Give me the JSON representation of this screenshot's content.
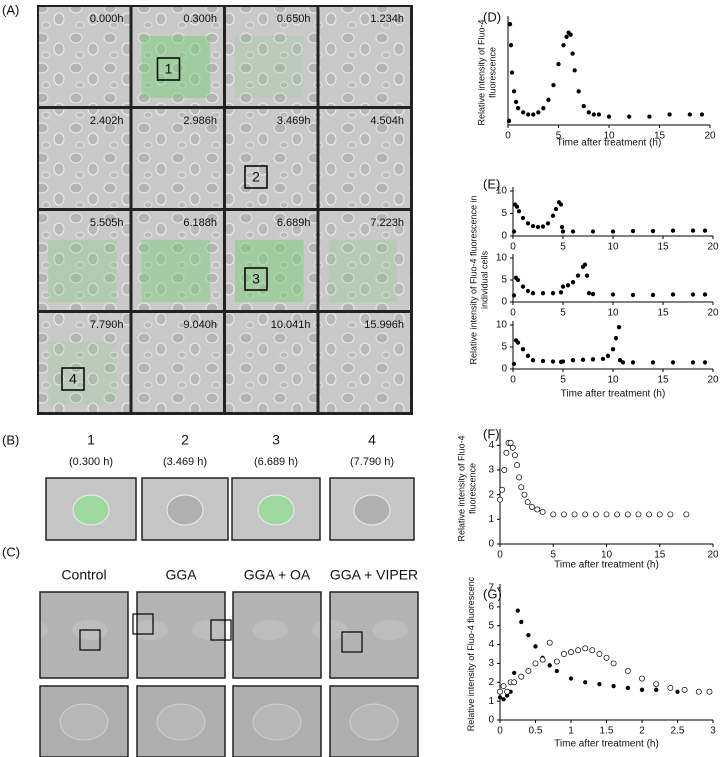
{
  "panels": {
    "A": {
      "label": "(A)",
      "tiles": [
        {
          "time": "0.000h"
        },
        {
          "time": "0.300h",
          "marker": "1"
        },
        {
          "time": "0.650h"
        },
        {
          "time": "1.234h"
        },
        {
          "time": "2.402h"
        },
        {
          "time": "2.986h"
        },
        {
          "time": "3.469h",
          "marker": "2"
        },
        {
          "time": "4.504h"
        },
        {
          "time": "5.505h"
        },
        {
          "time": "6.188h"
        },
        {
          "time": "6.689h",
          "marker": "3"
        },
        {
          "time": "7.223h"
        },
        {
          "time": "7.790h",
          "marker": "4"
        },
        {
          "time": "9.040h"
        },
        {
          "time": "10.041h"
        },
        {
          "time": "15.996h"
        }
      ]
    },
    "B": {
      "label": "(B)",
      "items": [
        {
          "number": "1",
          "time": "(0.300 h)"
        },
        {
          "number": "2",
          "time": "(3.469 h)"
        },
        {
          "number": "3",
          "time": "(6.689 h)"
        },
        {
          "number": "4",
          "time": "(7.790 h)"
        }
      ]
    },
    "C": {
      "label": "(C)",
      "headers": [
        "Control",
        "GGA",
        "GGA + OA",
        "GGA + VIPER"
      ]
    }
  },
  "chart_data": [
    {
      "type": "scatter",
      "label": "(D)",
      "y_label": [
        "Relative intensity of Fluo-4",
        "fluorescence"
      ],
      "x_label": "Time after treatment (h)",
      "xlim": [
        0,
        20
      ],
      "xticks": [
        0,
        5,
        10,
        15,
        20
      ],
      "ylim": [
        1,
        6
      ],
      "series": [
        {
          "color": "#000000",
          "marker": "filled",
          "x": [
            0.1,
            0.2,
            0.3,
            0.4,
            0.6,
            0.8,
            1,
            1.5,
            2,
            2.5,
            3,
            3.5,
            4,
            4.5,
            5,
            5.5,
            5.8,
            6,
            6.2,
            6.4,
            6.6,
            7,
            7.5,
            8,
            8.5,
            9,
            10,
            12,
            14,
            16,
            18,
            19.2
          ],
          "values": [
            1.2,
            5.8,
            4.8,
            3.5,
            2.6,
            2.1,
            1.8,
            1.6,
            1.5,
            1.5,
            1.6,
            1.8,
            2.2,
            2.9,
            3.9,
            4.8,
            5.2,
            5.4,
            5.3,
            4.4,
            3.6,
            2.6,
            1.9,
            1.6,
            1.5,
            1.5,
            1.4,
            1.4,
            1.4,
            1.5,
            1.5,
            1.5
          ]
        }
      ]
    },
    {
      "type": "scatter",
      "label": "(E)",
      "xlim": [
        0,
        20
      ],
      "xticks": [
        0,
        5,
        10,
        15,
        20
      ],
      "ylim": [
        0,
        10
      ],
      "yticks": [
        0,
        5,
        10
      ],
      "series": [
        {
          "color": "#000000",
          "marker": "filled",
          "x": [
            0.1,
            0.2,
            0.4,
            0.6,
            1,
            1.5,
            2,
            2.5,
            3,
            3.5,
            4,
            4.3,
            4.6,
            4.8,
            4.9,
            5,
            6,
            8,
            10,
            12,
            14,
            16,
            18,
            19.2
          ],
          "values": [
            1,
            7,
            6.5,
            5.5,
            4,
            2.8,
            2.2,
            2,
            2.1,
            2.8,
            4.5,
            6,
            7.5,
            7,
            2,
            1,
            1,
            1,
            1,
            1.1,
            1.1,
            1.2,
            1.2,
            1.2
          ]
        }
      ]
    },
    {
      "type": "scatter",
      "y_label": [
        "Relative intensity of Fluo-4 fluorescence in",
        "individual cells"
      ],
      "xlim": [
        0,
        20
      ],
      "xticks": [
        0,
        5,
        10,
        15,
        20
      ],
      "ylim": [
        0,
        10
      ],
      "yticks": [
        0,
        5,
        10
      ],
      "series": [
        {
          "color": "#000000",
          "marker": "filled",
          "x": [
            0.1,
            0.3,
            0.5,
            1,
            1.5,
            2,
            3,
            4,
            4.8,
            5,
            5.5,
            6,
            6.5,
            7,
            7.2,
            7.4,
            7.6,
            8,
            10,
            12,
            14,
            16,
            18,
            19.2
          ],
          "values": [
            1.5,
            5.5,
            5,
            3.5,
            2.5,
            2,
            2,
            2,
            2.2,
            3.5,
            3.8,
            4.5,
            6,
            8,
            8.5,
            6,
            2,
            1.8,
            1.7,
            1.6,
            1.6,
            1.7,
            1.7,
            1.7
          ]
        }
      ]
    },
    {
      "type": "scatter",
      "x_label": "Time after treatment (h)",
      "xlim": [
        0,
        20
      ],
      "xticks": [
        0,
        5,
        10,
        15,
        20
      ],
      "ylim": [
        0,
        10
      ],
      "yticks": [
        0,
        5,
        10
      ],
      "series": [
        {
          "color": "#000000",
          "marker": "filled",
          "x": [
            0.1,
            0.3,
            0.5,
            1,
            1.5,
            2,
            3,
            4,
            4.8,
            5,
            6,
            7,
            8,
            9,
            9.5,
            10,
            10.3,
            10.6,
            10.7,
            11,
            12,
            14,
            16,
            18,
            19.2
          ],
          "values": [
            1.2,
            6.5,
            6,
            4.5,
            3,
            2,
            1.8,
            1.7,
            1.6,
            1.7,
            2,
            2.1,
            2.2,
            2.3,
            3,
            4.5,
            7,
            9.5,
            2,
            1.5,
            1.5,
            1.5,
            1.5,
            1.5,
            1.5
          ]
        }
      ]
    },
    {
      "type": "scatter",
      "label": "(F)",
      "y_label": [
        "Relative intensity of Fluo-4",
        "fluorescence"
      ],
      "x_label": "Time after treatment (h)",
      "xlim": [
        0,
        20
      ],
      "xticks": [
        0,
        5,
        10,
        15,
        20
      ],
      "ylim": [
        0,
        4.5
      ],
      "yticks": [
        0,
        1,
        2,
        3,
        4
      ],
      "series": [
        {
          "color": "#000000",
          "marker": "open",
          "x": [
            0,
            0.2,
            0.4,
            0.6,
            0.8,
            1,
            1.2,
            1.4,
            1.6,
            1.8,
            2,
            2.3,
            2.6,
            3,
            3.5,
            4,
            5,
            6,
            7,
            8,
            9,
            10,
            11,
            12,
            13,
            14,
            15,
            16,
            17.5
          ],
          "values": [
            1.8,
            2.2,
            3,
            3.7,
            4.1,
            4.1,
            3.9,
            3.6,
            3.2,
            2.7,
            2.3,
            2,
            1.7,
            1.5,
            1.4,
            1.3,
            1.2,
            1.2,
            1.2,
            1.2,
            1.2,
            1.2,
            1.2,
            1.2,
            1.2,
            1.2,
            1.2,
            1.2,
            1.2
          ]
        }
      ]
    },
    {
      "type": "scatter",
      "label": "(G)",
      "y_label": [
        "Relative intensity of Fluo-4 fluorescenc"
      ],
      "x_label": "Time after treatment (h)",
      "xlim": [
        0,
        3
      ],
      "xticks": [
        0,
        0.5,
        1,
        1.5,
        2,
        2.5,
        3
      ],
      "ylim": [
        0,
        7
      ],
      "yticks": [
        0,
        1,
        2,
        3,
        4,
        5,
        6,
        7
      ],
      "series": [
        {
          "color": "#000000",
          "marker": "filled",
          "x": [
            0,
            0.05,
            0.1,
            0.15,
            0.2,
            0.25,
            0.3,
            0.4,
            0.5,
            0.6,
            0.7,
            0.8,
            1,
            1.2,
            1.4,
            1.6,
            1.8,
            2,
            2.2,
            2.5,
            2.8,
            2.95
          ],
          "values": [
            1.2,
            1.1,
            1.3,
            1.5,
            2.5,
            5.8,
            5.2,
            4.5,
            3.9,
            3.3,
            2.9,
            2.6,
            2.2,
            2,
            1.9,
            1.8,
            1.7,
            1.6,
            1.6,
            1.5,
            1.5,
            1.5
          ]
        },
        {
          "color": "#000000",
          "marker": "open",
          "x": [
            0,
            0.05,
            0.1,
            0.15,
            0.2,
            0.3,
            0.4,
            0.5,
            0.6,
            0.7,
            0.8,
            0.9,
            1,
            1.1,
            1.2,
            1.3,
            1.4,
            1.5,
            1.6,
            1.8,
            2,
            2.2,
            2.4,
            2.6,
            2.8,
            2.95
          ],
          "values": [
            1.5,
            1.8,
            1.5,
            2,
            2,
            2.3,
            2.6,
            3,
            3.2,
            4.1,
            3.1,
            3.5,
            3.6,
            3.7,
            3.8,
            3.7,
            3.5,
            3.3,
            3,
            2.6,
            2.2,
            1.9,
            1.7,
            1.6,
            1.5,
            1.5
          ]
        }
      ]
    }
  ]
}
